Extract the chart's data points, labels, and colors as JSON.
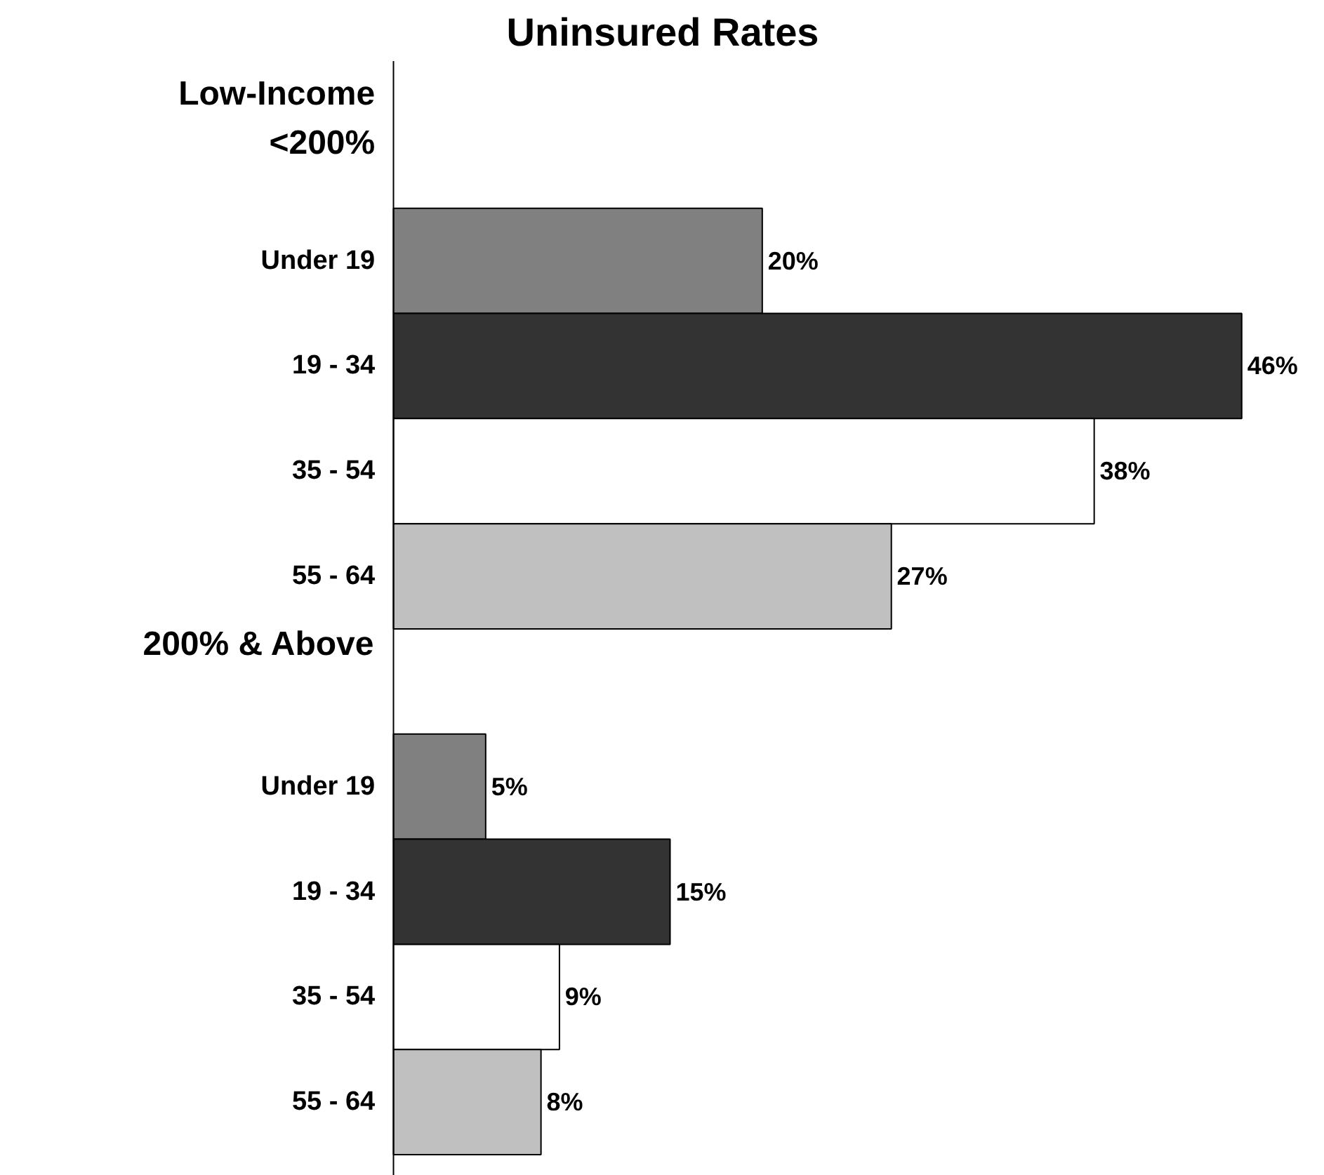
{
  "chart_data": {
    "type": "bar",
    "orientation": "horizontal",
    "title": "Uninsured Rates",
    "categories": [
      "Low-Income\n<200%",
      "Under 19",
      "19 - 34",
      "35 - 54",
      "55 - 64",
      "200% & Above",
      "Under 19",
      "19 - 34",
      "35 - 54",
      "55 - 64"
    ],
    "values": [
      null,
      20,
      46,
      38,
      27,
      null,
      5,
      15,
      9,
      8
    ],
    "colors": [
      "#ffffff",
      "#808080",
      "#333333",
      "#ffffff",
      "#c0c0c0",
      "#ffffff",
      "#808080",
      "#333333",
      "#ffffff",
      "#c0c0c0"
    ],
    "value_labels": [
      null,
      "20%",
      "46%",
      "38%",
      "27%",
      null,
      "5%",
      "15%",
      "9%",
      "8%"
    ],
    "grid": false
  }
}
